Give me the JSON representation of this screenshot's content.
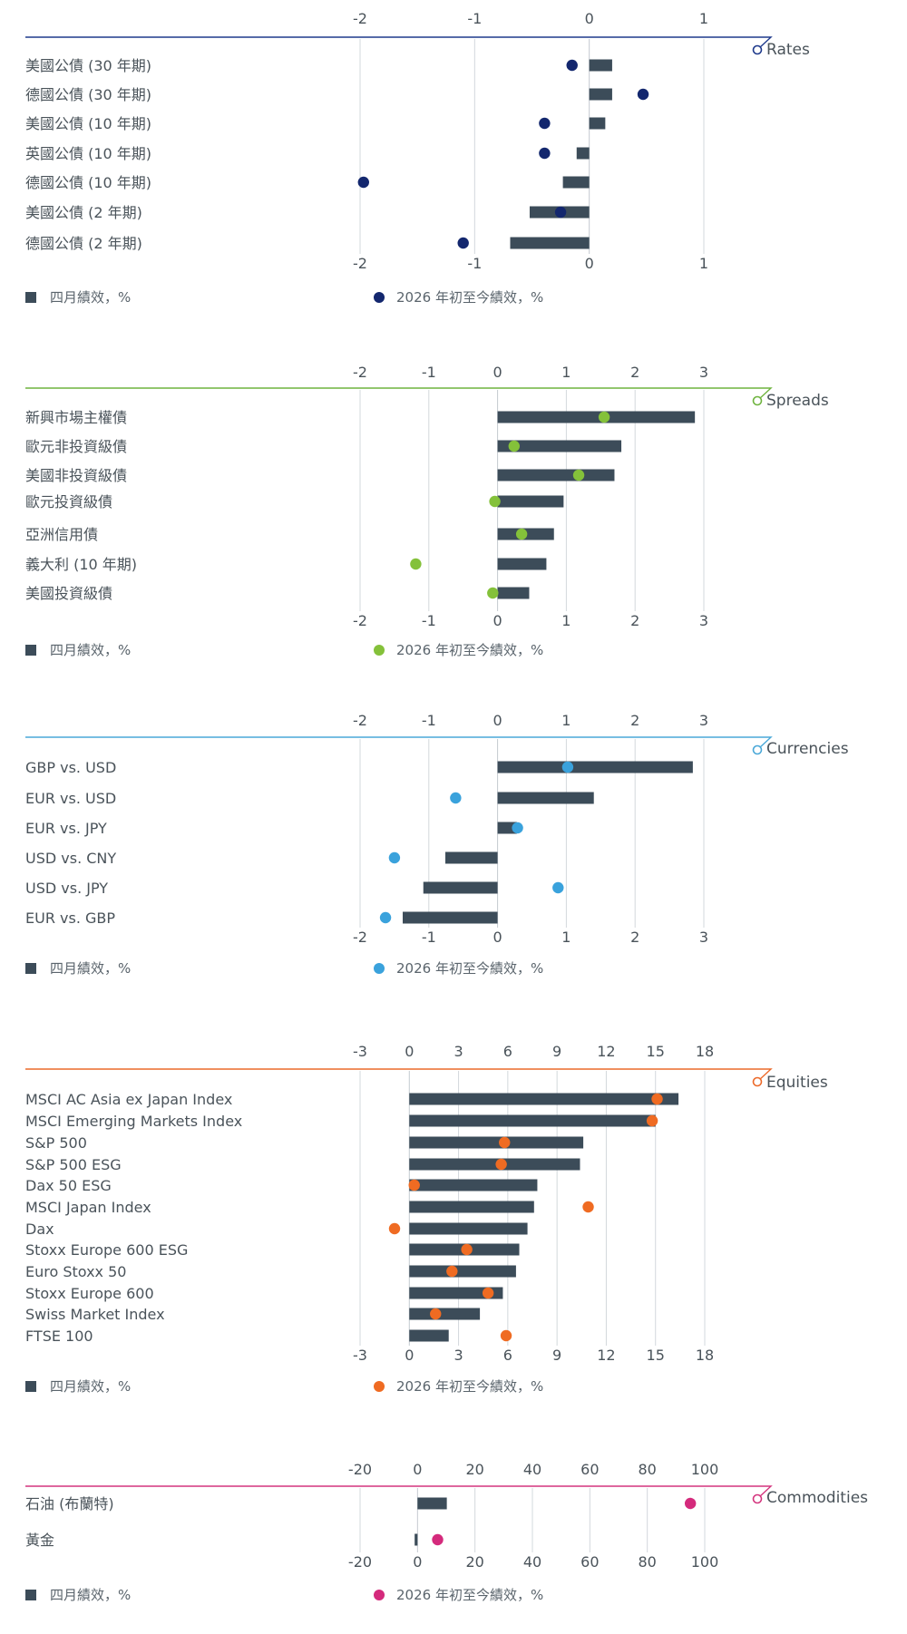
{
  "bar_color": "#3c4c59",
  "chart_data": [
    {
      "type": "bar",
      "title": "Rates",
      "accent": "#1f3a8c",
      "dot_color": "#13276e",
      "xlim": [
        -2,
        1
      ],
      "ticks": [
        -2,
        -1,
        0,
        1
      ],
      "categories": [
        "美國公債 (30 年期)",
        "德國公債 (30 年期)",
        "美國公債 (10 年期)",
        "英國公債 (10 年期)",
        "德國公債 (10 年期)",
        "美國公債 (2 年期)",
        "德國公債 (2 年期)"
      ],
      "series": [
        {
          "name": "四月績效，%",
          "values": [
            0.2,
            0.2,
            0.14,
            -0.11,
            -0.23,
            -0.52,
            -0.69
          ]
        },
        {
          "name": "2026 年初至今績效，%",
          "values": [
            -0.15,
            0.47,
            -0.39,
            -0.39,
            -1.97,
            -0.25,
            -1.1
          ]
        }
      ]
    },
    {
      "type": "bar",
      "title": "Spreads",
      "accent": "#6fb43f",
      "dot_color": "#84c13a",
      "xlim": [
        -2,
        3
      ],
      "ticks": [
        -2,
        -1,
        0,
        1,
        2,
        3
      ],
      "categories": [
        "新興市場主權債",
        "歐元非投資級債",
        "美國非投資級債",
        "歐元投資級債",
        "亞洲信用債",
        "義大利 (10 年期)",
        "美國投資級債"
      ],
      "series": [
        {
          "name": "四月績效，%",
          "values": [
            2.87,
            1.8,
            1.7,
            0.96,
            0.82,
            0.71,
            0.46
          ]
        },
        {
          "name": "2026 年初至今績效，%",
          "values": [
            1.55,
            0.24,
            1.18,
            -0.04,
            0.35,
            -1.19,
            -0.07
          ]
        }
      ]
    },
    {
      "type": "bar",
      "title": "Currencies",
      "accent": "#4aa8d8",
      "dot_color": "#3aa2dc",
      "xlim": [
        -2,
        3
      ],
      "ticks": [
        -2,
        -1,
        0,
        1,
        2,
        3
      ],
      "categories": [
        "GBP vs. USD",
        "EUR vs. USD",
        "EUR vs. JPY",
        "USD vs. CNY",
        "USD vs. JPY",
        "EUR vs. GBP"
      ],
      "series": [
        {
          "name": "四月績效，%",
          "values": [
            2.84,
            1.4,
            0.28,
            -0.76,
            -1.08,
            -1.38
          ]
        },
        {
          "name": "2026 年初至今績效，%",
          "values": [
            1.02,
            -0.61,
            0.29,
            -1.5,
            0.88,
            -1.63
          ]
        }
      ]
    },
    {
      "type": "bar",
      "title": "Equities",
      "accent": "#ec6a2a",
      "dot_color": "#ef6b22",
      "xlim": [
        -3,
        18
      ],
      "ticks": [
        -3,
        0,
        3,
        6,
        9,
        12,
        15,
        18
      ],
      "categories": [
        "MSCI AC Asia ex Japan Index",
        "MSCI Emerging Markets Index",
        "S&P 500",
        "S&P 500 ESG",
        "Dax 50 ESG",
        "MSCI Japan Index",
        "Dax",
        "Stoxx Europe 600 ESG",
        "Euro Stoxx 50",
        "Stoxx Europe 600",
        "Swiss Market Index",
        "FTSE 100"
      ],
      "series": [
        {
          "name": "四月績效，%",
          "values": [
            16.4,
            15.0,
            10.6,
            10.4,
            7.8,
            7.6,
            7.2,
            6.7,
            6.5,
            5.7,
            4.3,
            2.4
          ]
        },
        {
          "name": "2026 年初至今績效，%",
          "values": [
            15.1,
            14.8,
            5.8,
            5.6,
            0.3,
            10.9,
            -0.9,
            3.5,
            2.6,
            4.8,
            1.6,
            5.9
          ]
        }
      ]
    },
    {
      "type": "bar",
      "title": "Commodities",
      "accent": "#d4357e",
      "dot_color": "#d42a7c",
      "xlim": [
        -20,
        100
      ],
      "ticks": [
        -20,
        0,
        20,
        40,
        60,
        80,
        100
      ],
      "categories": [
        "石油 (布蘭特)",
        "黃金"
      ],
      "series": [
        {
          "name": "四月績效，%",
          "values": [
            10.2,
            -1.0
          ]
        },
        {
          "name": "2026 年初至今績效，%",
          "values": [
            95.0,
            7.0
          ]
        }
      ]
    }
  ]
}
